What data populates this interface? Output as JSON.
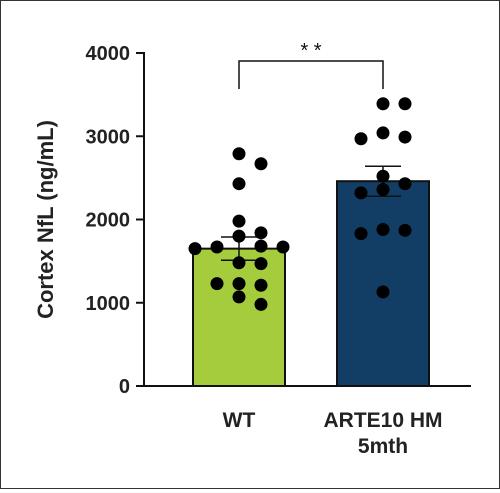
{
  "chart_data": {
    "type": "bar",
    "title": "",
    "ylabel": "Cortex NfL (ng/mL)",
    "xlabel": "",
    "ylim": [
      0,
      4000
    ],
    "yticks": [
      0,
      1000,
      2000,
      3000,
      4000
    ],
    "categories": [
      "WT",
      "ARTE10 HM\n5mth"
    ],
    "category_lines": [
      [
        "WT"
      ],
      [
        "ARTE10 HM",
        "5mth"
      ]
    ],
    "values": [
      1650,
      2460
    ],
    "sem": [
      140,
      180
    ],
    "colors": [
      "#a4cc3c",
      "#123e66"
    ],
    "points": [
      [
        2790,
        2670,
        2430,
        1980,
        1840,
        1800,
        1680,
        1670,
        1670,
        1650,
        1480,
        1470,
        1230,
        1210,
        1230,
        1070,
        980
      ],
      [
        3390,
        3390,
        3040,
        2990,
        2970,
        2520,
        2430,
        2360,
        2320,
        1880,
        1870,
        1830,
        1130
      ]
    ],
    "significance": {
      "label": "* *",
      "between": [
        0,
        1
      ]
    },
    "grid": false,
    "legend": "none"
  }
}
